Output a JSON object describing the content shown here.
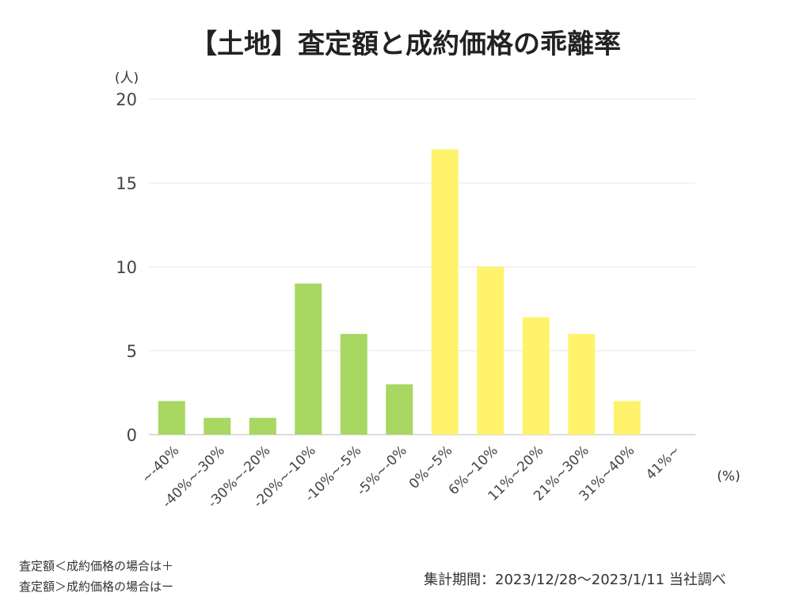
{
  "chart_data": {
    "type": "bar",
    "title": "【土地】査定額と成約価格の乖離率",
    "ylabel": "(人)",
    "xlabel": "(%)",
    "categories": [
      "~-40%",
      "-40%~-30%",
      "-30%~-20%",
      "-20%~-10%",
      "-10%~-5%",
      "-5%~-0%",
      "0%~5%",
      "6%~10%",
      "11%~20%",
      "21%~30%",
      "31%~40%",
      "41%~"
    ],
    "values": [
      2,
      1,
      1,
      9,
      6,
      3,
      17,
      10,
      7,
      6,
      2,
      0
    ],
    "bar_colors": [
      "#a8d762",
      "#a8d762",
      "#a8d762",
      "#a8d762",
      "#a8d762",
      "#a8d762",
      "#fff36b",
      "#fff36b",
      "#fff36b",
      "#fff36b",
      "#fff36b",
      "#fff36b"
    ],
    "ylim": [
      0,
      20
    ],
    "yticks": [
      0,
      5,
      10,
      15,
      20
    ],
    "grid": true
  },
  "notes": {
    "line1": "査定額＜成約価格の場合は＋",
    "line2": "査定額＞成約価格の場合はー"
  },
  "period": "集計期間：2023/12/28〜2023/1/11 当社調べ"
}
